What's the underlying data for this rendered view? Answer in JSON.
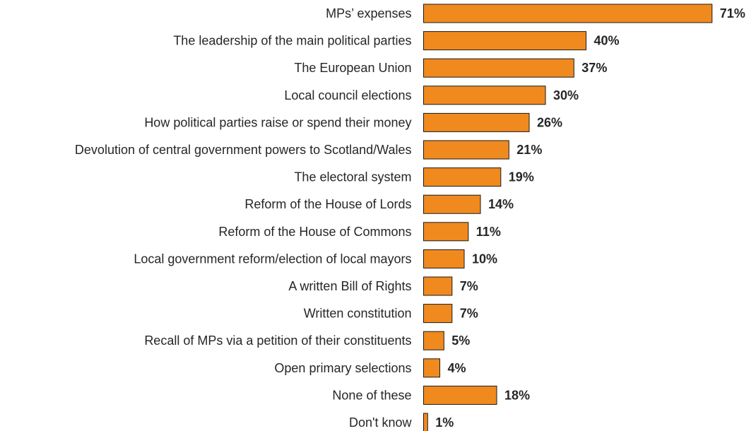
{
  "chart_data": {
    "type": "bar",
    "orientation": "horizontal",
    "title": "",
    "xlabel": "",
    "ylabel": "",
    "value_suffix": "%",
    "xlim": [
      0,
      100
    ],
    "grid": false,
    "legend": "none",
    "bar_color": "#F08A1F",
    "bar_outline_color": "#1A1A1A",
    "text_color": "#262626",
    "categories": [
      "MPs’ expenses",
      "The leadership of the main political parties",
      "The European Union",
      "Local council elections",
      "How political parties raise or spend their money",
      "Devolution of central government powers to Scotland/Wales",
      "The electoral system",
      "Reform of the House of Lords",
      "Reform of the House of Commons",
      "Local government reform/election of local mayors",
      "A written Bill of Rights",
      "Written constitution",
      "Recall of MPs via a petition of their constituents",
      "Open primary selections",
      "None of these",
      "Don't know"
    ],
    "values": [
      71,
      40,
      37,
      30,
      26,
      21,
      19,
      14,
      11,
      10,
      7,
      7,
      5,
      4,
      18,
      1
    ]
  }
}
